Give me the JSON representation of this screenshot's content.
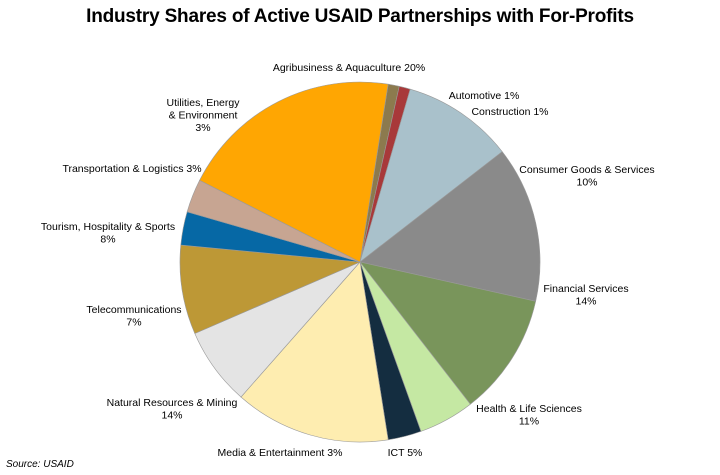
{
  "chart_data": {
    "type": "pie",
    "title": "Industry Shares of Active USAID Partnerships with For-Profits",
    "source": "Source: USAID",
    "slices": [
      {
        "name": "Automotive",
        "value": 1,
        "label_lines": [
          "Automotive 1%"
        ],
        "color": "#8c7a4e"
      },
      {
        "name": "Construction",
        "value": 1,
        "label_lines": [
          "Construction 1%"
        ],
        "color": "#a8393a"
      },
      {
        "name": "Consumer Goods & Services",
        "value": 10,
        "label_lines": [
          "Consumer Goods & Services",
          "10%"
        ],
        "color": "#a9c1cb"
      },
      {
        "name": "Financial Services",
        "value": 14,
        "label_lines": [
          "Financial Services",
          "14%"
        ],
        "color": "#8a8a8a"
      },
      {
        "name": "Health & Life Sciences",
        "value": 11,
        "label_lines": [
          "Health & Life Sciences",
          "11%"
        ],
        "color": "#79955b"
      },
      {
        "name": "ICT",
        "value": 5,
        "label_lines": [
          "ICT 5%"
        ],
        "color": "#c5e8a3"
      },
      {
        "name": "Media & Entertainment",
        "value": 3,
        "label_lines": [
          "Media & Entertainment 3%"
        ],
        "color": "#142d40"
      },
      {
        "name": "Natural Resources & Mining",
        "value": 14,
        "label_lines": [
          "Natural Resources & Mining",
          "14%"
        ],
        "color": "#feedb0"
      },
      {
        "name": "Telecommunications",
        "value": 7,
        "label_lines": [
          "Telecommunications",
          "7%"
        ],
        "color": "#e4e4e4"
      },
      {
        "name": "Tourism, Hospitality & Sports",
        "value": 8,
        "label_lines": [
          "Tourism, Hospitality & Sports",
          "8%"
        ],
        "color": "#bd9836"
      },
      {
        "name": "Transportation & Logistics",
        "value": 3,
        "label_lines": [
          "Transportation & Logistics 3%"
        ],
        "color": "#0668a5"
      },
      {
        "name": "Utilities, Energy & Environment",
        "value": 3,
        "label_lines": [
          "Utilities, Energy",
          "& Environment",
          "3%"
        ],
        "color": "#c7a592"
      },
      {
        "name": "Agribusiness & Aquaculture",
        "value": 20,
        "label_lines": [
          "Agribusiness & Aquaculture 20%"
        ],
        "color": "#ffa602"
      }
    ]
  }
}
